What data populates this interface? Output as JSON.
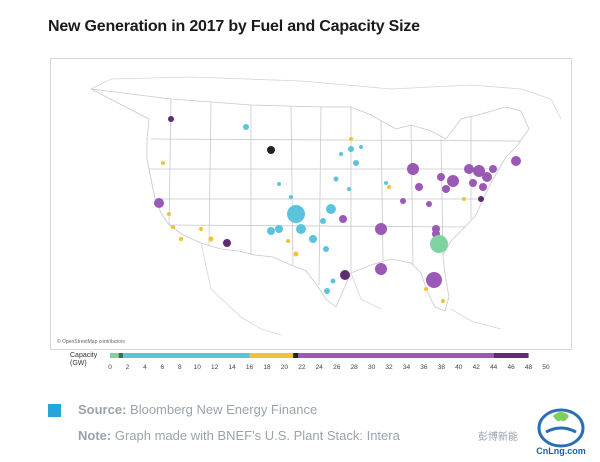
{
  "title": "New Generation in 2017 by Fuel and Capacity Size",
  "map": {
    "credit": "© OpenStreetMap contributors",
    "colors": {
      "land": "#ffffff",
      "border": "#c9c9c9",
      "coast": "#bdbdbd"
    }
  },
  "legend": {
    "label_line1": "Capacity",
    "label_line2": "(GW)",
    "ticks": [
      "0",
      "2",
      "4",
      "6",
      "8",
      "10",
      "12",
      "14",
      "16",
      "18",
      "20",
      "22",
      "24",
      "26",
      "28",
      "30",
      "32",
      "34",
      "36",
      "38",
      "40",
      "42",
      "44",
      "46",
      "48",
      "50"
    ],
    "segments": [
      {
        "from": 0,
        "to": 1,
        "color": "#7fd3a0"
      },
      {
        "from": 1,
        "to": 1.5,
        "color": "#3b6e49"
      },
      {
        "from": 1.5,
        "to": 16,
        "color": "#5bc4dc"
      },
      {
        "from": 16,
        "to": 21,
        "color": "#f1c232"
      },
      {
        "from": 21,
        "to": 21.6,
        "color": "#222222"
      },
      {
        "from": 21.6,
        "to": 44,
        "color": "#9b59b6"
      },
      {
        "from": 44,
        "to": 48,
        "color": "#5e2d6f"
      }
    ]
  },
  "footer": {
    "source_label": "Source:",
    "source_text": "Bloomberg New Energy Finance",
    "note_label": "Note:",
    "note_text": "Graph made with BNEF's U.S. Plant Stack: Intera"
  },
  "watermark": {
    "text": "彭博新能",
    "logo_text": "CnLng.com",
    "logo_colors": {
      "ring": "#2a6fb5",
      "leaf": "#7ccf5a",
      "text": "#1c5fa8"
    }
  },
  "bubbles": [
    {
      "c": "#5bc4dc",
      "v": 8
    },
    {
      "c": "#5bc4dc",
      "v": 3
    },
    {
      "c": "#5bc4dc",
      "v": 2
    },
    {
      "c": "#5bc4dc",
      "v": 2
    },
    {
      "c": "#9b59b6",
      "v": 4
    },
    {
      "c": "#9b59b6",
      "v": 3
    },
    {
      "c": "#9b59b6",
      "v": 5
    },
    {
      "c": "#9b59b6",
      "v": 4
    },
    {
      "c": "#7fd3a0",
      "v": 6
    },
    {
      "c": "#9b59b6",
      "v": 6
    },
    {
      "c": "#f1c232",
      "v": 1
    }
  ]
}
